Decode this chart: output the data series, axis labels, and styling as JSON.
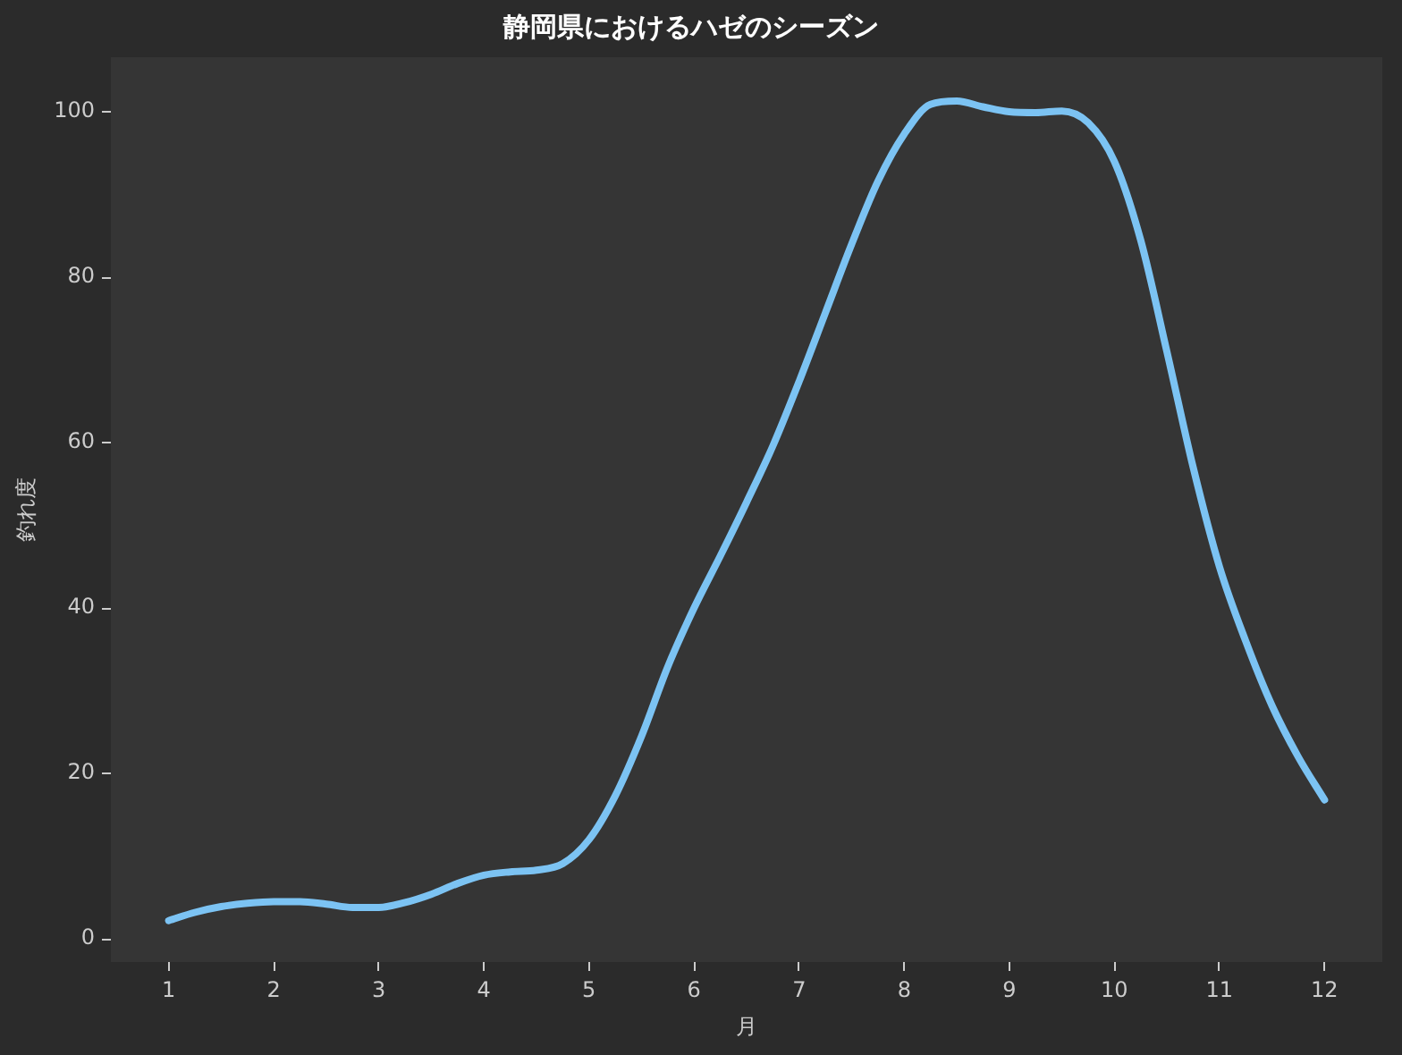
{
  "chart_data": {
    "type": "line",
    "title": "静岡県におけるハゼのシーズン",
    "xlabel": "月",
    "ylabel": "釣れ度",
    "x": [
      1.0,
      1.25,
      1.5,
      1.75,
      2.0,
      2.25,
      2.5,
      2.75,
      3.0,
      3.25,
      3.5,
      3.75,
      4.0,
      4.25,
      4.5,
      4.75,
      5.0,
      5.25,
      5.5,
      5.75,
      6.0,
      6.25,
      6.5,
      6.75,
      7.0,
      7.25,
      7.5,
      7.75,
      8.0,
      8.25,
      8.5,
      8.75,
      9.0,
      9.25,
      9.5,
      9.75,
      10.0,
      10.25,
      10.5,
      10.75,
      11.0,
      11.25,
      11.5,
      11.75,
      12.0
    ],
    "values": [
      2.2,
      3.2,
      3.9,
      4.3,
      4.5,
      4.5,
      4.2,
      3.8,
      3.8,
      4.4,
      5.4,
      6.7,
      7.7,
      8.1,
      8.3,
      9.1,
      12.0,
      17.3,
      24.5,
      32.9,
      40.0,
      46.3,
      52.8,
      59.6,
      67.4,
      75.7,
      84.0,
      91.6,
      97.3,
      100.9,
      101.3,
      100.6,
      100.0,
      99.9,
      100.1,
      98.7,
      94.0,
      84.5,
      71.0,
      57.0,
      45.0,
      36.0,
      28.2,
      22.0,
      16.8
    ],
    "color": "#7cc3f3",
    "xlim": [
      0.45,
      12.55
    ],
    "ylim": [
      -2.8,
      106.6
    ],
    "xticks": [
      1,
      2,
      3,
      4,
      5,
      6,
      7,
      8,
      9,
      10,
      11,
      12
    ],
    "yticks": [
      0,
      20,
      40,
      60,
      80,
      100
    ]
  }
}
